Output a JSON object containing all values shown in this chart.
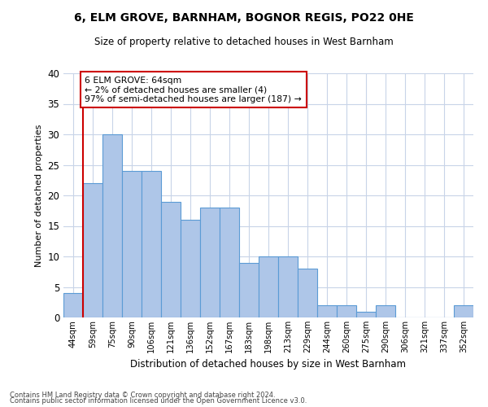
{
  "title": "6, ELM GROVE, BARNHAM, BOGNOR REGIS, PO22 0HE",
  "subtitle": "Size of property relative to detached houses in West Barnham",
  "xlabel": "Distribution of detached houses by size in West Barnham",
  "ylabel": "Number of detached properties",
  "categories": [
    "44sqm",
    "59sqm",
    "75sqm",
    "90sqm",
    "106sqm",
    "121sqm",
    "136sqm",
    "152sqm",
    "167sqm",
    "183sqm",
    "198sqm",
    "213sqm",
    "229sqm",
    "244sqm",
    "260sqm",
    "275sqm",
    "290sqm",
    "306sqm",
    "321sqm",
    "337sqm",
    "352sqm"
  ],
  "values": [
    4,
    22,
    30,
    24,
    24,
    19,
    16,
    18,
    18,
    9,
    10,
    10,
    8,
    2,
    2,
    1,
    2,
    0,
    0,
    0,
    2
  ],
  "bar_color": "#aec6e8",
  "bar_edge_color": "#5b9bd5",
  "red_line_index": 1,
  "annotation_line1": "6 ELM GROVE: 64sqm",
  "annotation_line2": "← 2% of detached houses are smaller (4)",
  "annotation_line3": "97% of semi-detached houses are larger (187) →",
  "annotation_box_color": "#ffffff",
  "annotation_box_edge": "#cc0000",
  "red_line_color": "#cc0000",
  "ylim": [
    0,
    40
  ],
  "yticks": [
    0,
    5,
    10,
    15,
    20,
    25,
    30,
    35,
    40
  ],
  "footer_line1": "Contains HM Land Registry data © Crown copyright and database right 2024.",
  "footer_line2": "Contains public sector information licensed under the Open Government Licence v3.0.",
  "bg_color": "#ffffff",
  "grid_color": "#c8d4e8"
}
